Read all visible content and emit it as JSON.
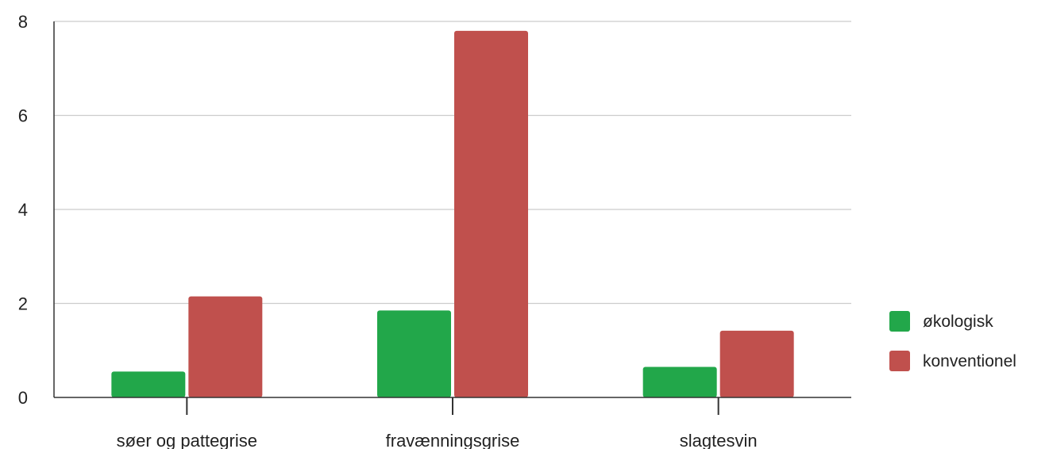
{
  "colors": {
    "background": "#ffffff",
    "grid": "#cccccc",
    "axis": "#333333",
    "tick_text": "#222222"
  },
  "chart_data": {
    "type": "bar",
    "categories": [
      "søer og pattegrise",
      "fravænningsgrise",
      "slagtesvin"
    ],
    "series": [
      {
        "name": "økologisk",
        "color": "#22a74a",
        "values": [
          0.55,
          1.85,
          0.65
        ]
      },
      {
        "name": "konventionel",
        "color": "#c0504d",
        "values": [
          2.15,
          7.8,
          1.42
        ]
      }
    ],
    "ylim": [
      0,
      8
    ],
    "yticks": [
      0,
      2,
      4,
      6,
      8
    ],
    "grid": true,
    "legend_position": "right"
  }
}
